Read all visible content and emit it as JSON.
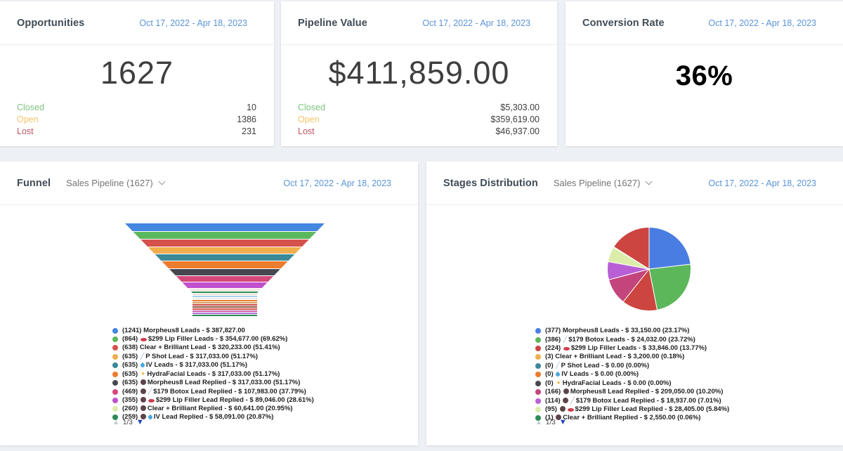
{
  "kpi_cards": [
    {
      "title": "Opportunities",
      "date_range": "Oct 17, 2022 - Apr 18, 2023",
      "big_value": "1627",
      "rows": [
        {
          "label": "Closed",
          "value": "10",
          "color": "#7cc47f"
        },
        {
          "label": "Open",
          "value": "1386",
          "color": "#f5c46a"
        },
        {
          "label": "Lost",
          "value": "231",
          "color": "#c25663"
        }
      ]
    },
    {
      "title": "Pipeline Value",
      "date_range": "Oct 17, 2022 - Apr 18, 2023",
      "big_value": "$411,859.00",
      "rows": [
        {
          "label": "Closed",
          "value": "$5,303.00",
          "color": "#7cc47f"
        },
        {
          "label": "Open",
          "value": "$359,619.00",
          "color": "#f5c46a"
        },
        {
          "label": "Lost",
          "value": "$46,937.00",
          "color": "#c25663"
        }
      ]
    },
    {
      "title": "Conversion Rate",
      "date_range": "Oct 17, 2022 - Apr 18, 2023",
      "big_value": "36%",
      "rows": []
    }
  ],
  "funnel_card": {
    "title": "Funnel",
    "selector": "Sales Pipeline (1627)",
    "date_range": "Oct 17, 2022 - Apr 18, 2023",
    "pagination": {
      "up": "▲",
      "label": "1/3",
      "down": "▼"
    }
  },
  "stages_card": {
    "title": "Stages Distribution",
    "selector": "Sales Pipeline (1627)",
    "date_range": "Oct 17, 2022 - Apr 18, 2023",
    "pagination": {
      "up": "▲",
      "label": "1/3",
      "down": "▼"
    }
  },
  "chart_data": [
    {
      "type": "funnel",
      "title": "Funnel",
      "pipeline": "Sales Pipeline (1627)",
      "total_opportunities": 1627,
      "legend_position": "bottom-left",
      "stages": [
        {
          "count": 1241,
          "label": "Morpheus8 Leads",
          "value": "387,827.00",
          "pct": null,
          "color": "#4486e0",
          "icons": []
        },
        {
          "count": 864,
          "label": "$299 Lip Filler Leads",
          "value": "354,677.00",
          "pct": "69.62",
          "color": "#5cb85c",
          "icons": [
            "lips"
          ]
        },
        {
          "count": 638,
          "label": "Clear + Brilliant Lead",
          "value": "320,233.00",
          "pct": "51.41",
          "color": "#d4524b",
          "icons": []
        },
        {
          "count": 635,
          "label": "P Shot Lead",
          "value": "317,033.00",
          "pct": "51.17",
          "color": "#f0ad4e",
          "icons": [
            "syringe"
          ]
        },
        {
          "count": 635,
          "label": "IV Leads",
          "value": "317,033.00",
          "pct": "51.17",
          "color": "#3a8a99",
          "icons": [
            "drop"
          ]
        },
        {
          "count": 635,
          "label": "HydraFacial Leads",
          "value": "317,033.00",
          "pct": "51.17",
          "color": "#ee7c2e",
          "icons": [
            "sparkle"
          ]
        },
        {
          "count": 635,
          "label": "Morpheus8 Lead Replied",
          "value": "317,033.00",
          "pct": "51.17",
          "color": "#47474f",
          "icons": [
            "reply"
          ]
        },
        {
          "count": 469,
          "label": "$179 Botox Lead Replied",
          "value": "107,983.00",
          "pct": "37.79",
          "color": "#d6487c",
          "icons": [
            "reply",
            "syringe"
          ]
        },
        {
          "count": 355,
          "label": "$299 Lip Filler Lead Replied",
          "value": "89,046.00",
          "pct": "28.61",
          "color": "#c050ce",
          "icons": [
            "reply",
            "lips"
          ]
        },
        {
          "count": 260,
          "label": "Clear + Brilliant Replied",
          "value": "60,641.00",
          "pct": "20.95",
          "color": "#dcedaa",
          "icons": [
            "reply"
          ]
        },
        {
          "count": 259,
          "label": "IV Lead Replied",
          "value": "58,091.00",
          "pct": "20.87",
          "color": "#2e8b57",
          "icons": [
            "reply",
            "drop"
          ]
        }
      ],
      "bands": [
        [
          "#4486e0",
          11
        ],
        [
          "#5cb85c",
          10
        ],
        [
          "#d4524b",
          10
        ],
        [
          "#f0ad4e",
          9
        ],
        [
          "#3a8a99",
          9
        ],
        [
          "#ee7c2e",
          10
        ],
        [
          "#47474f",
          9
        ],
        [
          "#d6487c",
          8
        ],
        [
          "#c050ce",
          8
        ],
        [
          "#f4e6e0",
          3
        ],
        [
          "#2e8b57",
          2
        ],
        [
          "#e9e3d5",
          2
        ],
        [
          "#a9cfe8",
          2
        ],
        [
          "#e6efe8",
          2
        ],
        [
          "#ee7c2e",
          2
        ],
        [
          "#d49a5e",
          2
        ],
        [
          "#cc4540",
          2
        ],
        [
          "#8a5a44",
          2
        ],
        [
          "#d4524b",
          2
        ],
        [
          "#cc5fae",
          2
        ],
        [
          "#b06cd4",
          2
        ],
        [
          "#2e8b57",
          2
        ]
      ]
    },
    {
      "type": "pie",
      "title": "Stages Distribution",
      "pipeline": "Sales Pipeline (1627)",
      "total_opportunities": 1627,
      "legend_position": "bottom-left",
      "slices": [
        {
          "count": 377,
          "label": "Morpheus8 Leads",
          "value": "33,150.00",
          "pct": "23.17",
          "color": "#4a7de2",
          "icons": []
        },
        {
          "count": 386,
          "label": "$179 Botox Leads",
          "value": "24,032.00",
          "pct": "23.72",
          "color": "#5cb75a",
          "icons": [
            "syringe"
          ]
        },
        {
          "count": 224,
          "label": "$299 Lip Filler Leads",
          "value": "33,846.00",
          "pct": "13.77",
          "color": "#cc4540",
          "icons": [
            "lips"
          ]
        },
        {
          "count": 3,
          "label": "Clear + Brilliant Lead",
          "value": "3,200.00",
          "pct": "0.18",
          "color": "#f0ad4e",
          "icons": []
        },
        {
          "count": 0,
          "label": "P Shot Lead",
          "value": "0.00",
          "pct": "0.00",
          "color": "#3a8a99",
          "icons": [
            "syringe"
          ]
        },
        {
          "count": 0,
          "label": "IV Leads",
          "value": "0.00",
          "pct": "0.00",
          "color": "#ee7c2e",
          "icons": [
            "drop"
          ]
        },
        {
          "count": 0,
          "label": "HydraFacial Leads",
          "value": "0.00",
          "pct": "0.00",
          "color": "#47474f",
          "icons": [
            "sparkle"
          ]
        },
        {
          "count": 166,
          "label": "Morpheus8 Lead Replied",
          "value": "209,050.00",
          "pct": "10.20",
          "color": "#c4447c",
          "icons": [
            "reply"
          ]
        },
        {
          "count": 114,
          "label": "$179 Botox Lead Replied",
          "value": "18,937.00",
          "pct": "7.01",
          "color": "#b85fd6",
          "icons": [
            "reply",
            "syringe"
          ]
        },
        {
          "count": 95,
          "label": "$299 Lip Filler Lead Replied",
          "value": "28,405.00",
          "pct": "5.84",
          "color": "#dcedaa",
          "icons": [
            "reply",
            "lips"
          ]
        },
        {
          "count": 1,
          "label": "Clear + Brilliant Replied",
          "value": "2,550.00",
          "pct": "0.06",
          "color": "#2e8b57",
          "icons": [
            "reply"
          ]
        }
      ],
      "unlabeled_remainder": {
        "label": null,
        "pct": "16.05",
        "color": "#cc4540"
      },
      "draw_order": [
        0,
        1,
        2,
        7,
        8,
        9,
        3,
        10,
        "remainder"
      ]
    }
  ]
}
